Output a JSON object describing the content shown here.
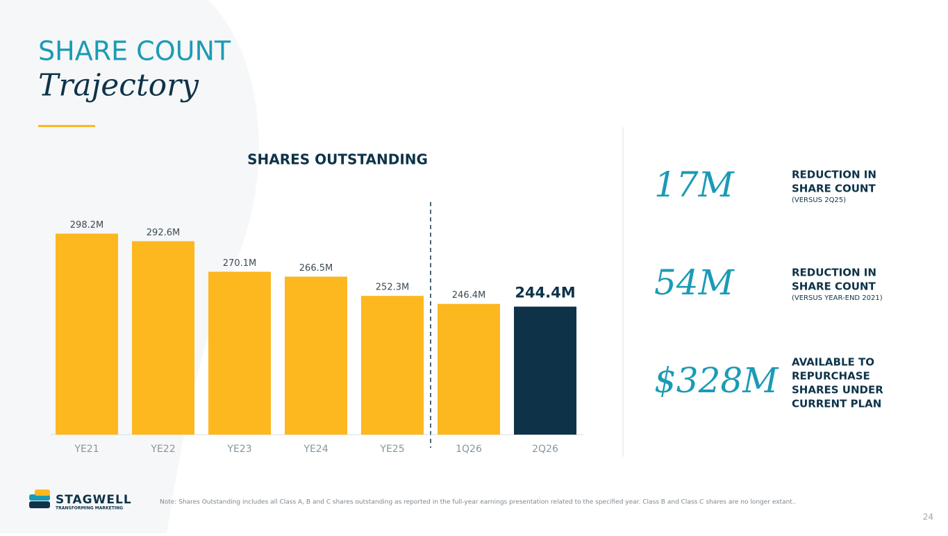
{
  "slide": {
    "title": "SHARE COUNT",
    "subtitle": "Trajectory",
    "stats": [
      {
        "value": "17M",
        "lines": [
          "REDUCTION IN",
          "SHARE COUNT"
        ],
        "note": "(VERSUS 2Q25)"
      },
      {
        "value": "54M",
        "lines": [
          "REDUCTION IN",
          "SHARE COUNT"
        ],
        "note": "(VERSUS YEAR-END 2021)"
      },
      {
        "value": "$328M",
        "lines": [
          "AVAILABLE TO",
          "REPURCHASE",
          "SHARES UNDER",
          "CURRENT PLAN"
        ]
      }
    ],
    "logo": {
      "name": "STAGWELL",
      "tagline": "TRANSFORMING MARKETING"
    },
    "footnote": "Note: Shares Outstanding includes all Class A, B and C shares outstanding as reported in the full-year earnings presentation related to the specified year. Class B and Class C shares are no longer extant..",
    "page_number": "24"
  },
  "chart_data": {
    "type": "bar",
    "title": "SHARES OUTSTANDING",
    "categories": [
      "YE21",
      "YE22",
      "YE23",
      "YE24",
      "YE25",
      "1Q26",
      "2Q26"
    ],
    "values": [
      298.2,
      292.6,
      270.1,
      266.5,
      252.3,
      246.4,
      244.4
    ],
    "value_labels": [
      "298.2M",
      "292.6M",
      "270.1M",
      "266.5M",
      "252.3M",
      "246.4M",
      "244.4M"
    ],
    "colors": [
      "#fdb71f",
      "#fdb71f",
      "#fdb71f",
      "#fdb71f",
      "#fdb71f",
      "#fdb71f",
      "#0e3349"
    ],
    "ylim": [
      150,
      300
    ]
  }
}
